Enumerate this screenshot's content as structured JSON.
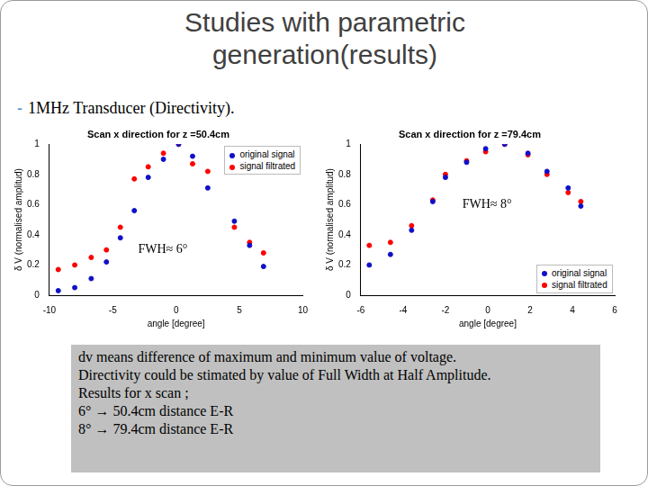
{
  "slide": {
    "title": "Studies with parametric generation(results)",
    "bullet": "1MHz Transducer (Directivity).",
    "note": [
      "dv means difference of maximum and minimum value of voltage.",
      "Directivity could be stimated  by value of Full Width at Half Amplitude.",
      "Results for  x scan ;",
      "6° → 50.4cm distance E-R",
      "8° → 79.4cm distance E-R"
    ]
  },
  "chart_data": [
    {
      "type": "scatter",
      "title": "Scan x direction for z =50.4cm",
      "x_label": "angle [degree]",
      "y_label": "δ V (normalised amplitud)",
      "annotation": "FWH≈ 6°",
      "x": [
        -9.3,
        -8.0,
        -6.7,
        -5.5,
        -4.4,
        -3.3,
        -2.2,
        -1.0,
        0.2,
        1.3,
        2.5,
        4.6,
        5.8,
        6.9
      ],
      "series": [
        {
          "name": "original signal",
          "color": "#1010c8",
          "marker": "circle",
          "values": [
            0.03,
            0.05,
            0.11,
            0.22,
            0.38,
            0.56,
            0.78,
            0.9,
            1.0,
            0.92,
            0.71,
            0.49,
            0.33,
            0.19
          ]
        },
        {
          "name": "signal filtrated",
          "color": "#ff0000",
          "marker": "circle",
          "values": [
            0.17,
            0.2,
            0.25,
            0.3,
            0.45,
            0.77,
            0.85,
            0.94,
            1.0,
            0.87,
            0.82,
            0.45,
            0.35,
            0.28
          ]
        }
      ],
      "xlim": [
        -10,
        10
      ],
      "xticks": [
        -10,
        -5,
        0,
        5,
        10
      ],
      "ylim": [
        0,
        1
      ],
      "yticks": [
        0,
        0.2,
        0.4,
        0.6,
        0.8,
        1
      ],
      "grid": false,
      "legend": "upper right"
    },
    {
      "type": "scatter",
      "title": "Scan x direction for z =79.4cm",
      "x_label": "angle [degree]",
      "y_label": "δ V (normalised amplitud)",
      "annotation": "FWH≈ 8°",
      "x": [
        -5.6,
        -4.6,
        -3.6,
        -2.6,
        -2.0,
        -1.0,
        -0.1,
        0.8,
        1.9,
        2.8,
        3.8,
        4.4
      ],
      "series": [
        {
          "name": "original signal",
          "color": "#1010c8",
          "marker": "circle",
          "values": [
            0.2,
            0.27,
            0.43,
            0.62,
            0.78,
            0.88,
            0.97,
            1.0,
            0.94,
            0.82,
            0.71,
            0.59
          ]
        },
        {
          "name": "signal filtrated",
          "color": "#ff0000",
          "marker": "circle",
          "values": [
            0.33,
            0.35,
            0.46,
            0.63,
            0.8,
            0.89,
            0.95,
            1.0,
            0.93,
            0.8,
            0.68,
            0.62
          ]
        }
      ],
      "xlim": [
        -6,
        6
      ],
      "xticks": [
        -6,
        -4,
        -2,
        0,
        2,
        4,
        6
      ],
      "ylim": [
        0,
        1
      ],
      "yticks": [
        0,
        0.2,
        0.4,
        0.6,
        0.8,
        1
      ],
      "grid": false,
      "legend": "lower right"
    }
  ]
}
